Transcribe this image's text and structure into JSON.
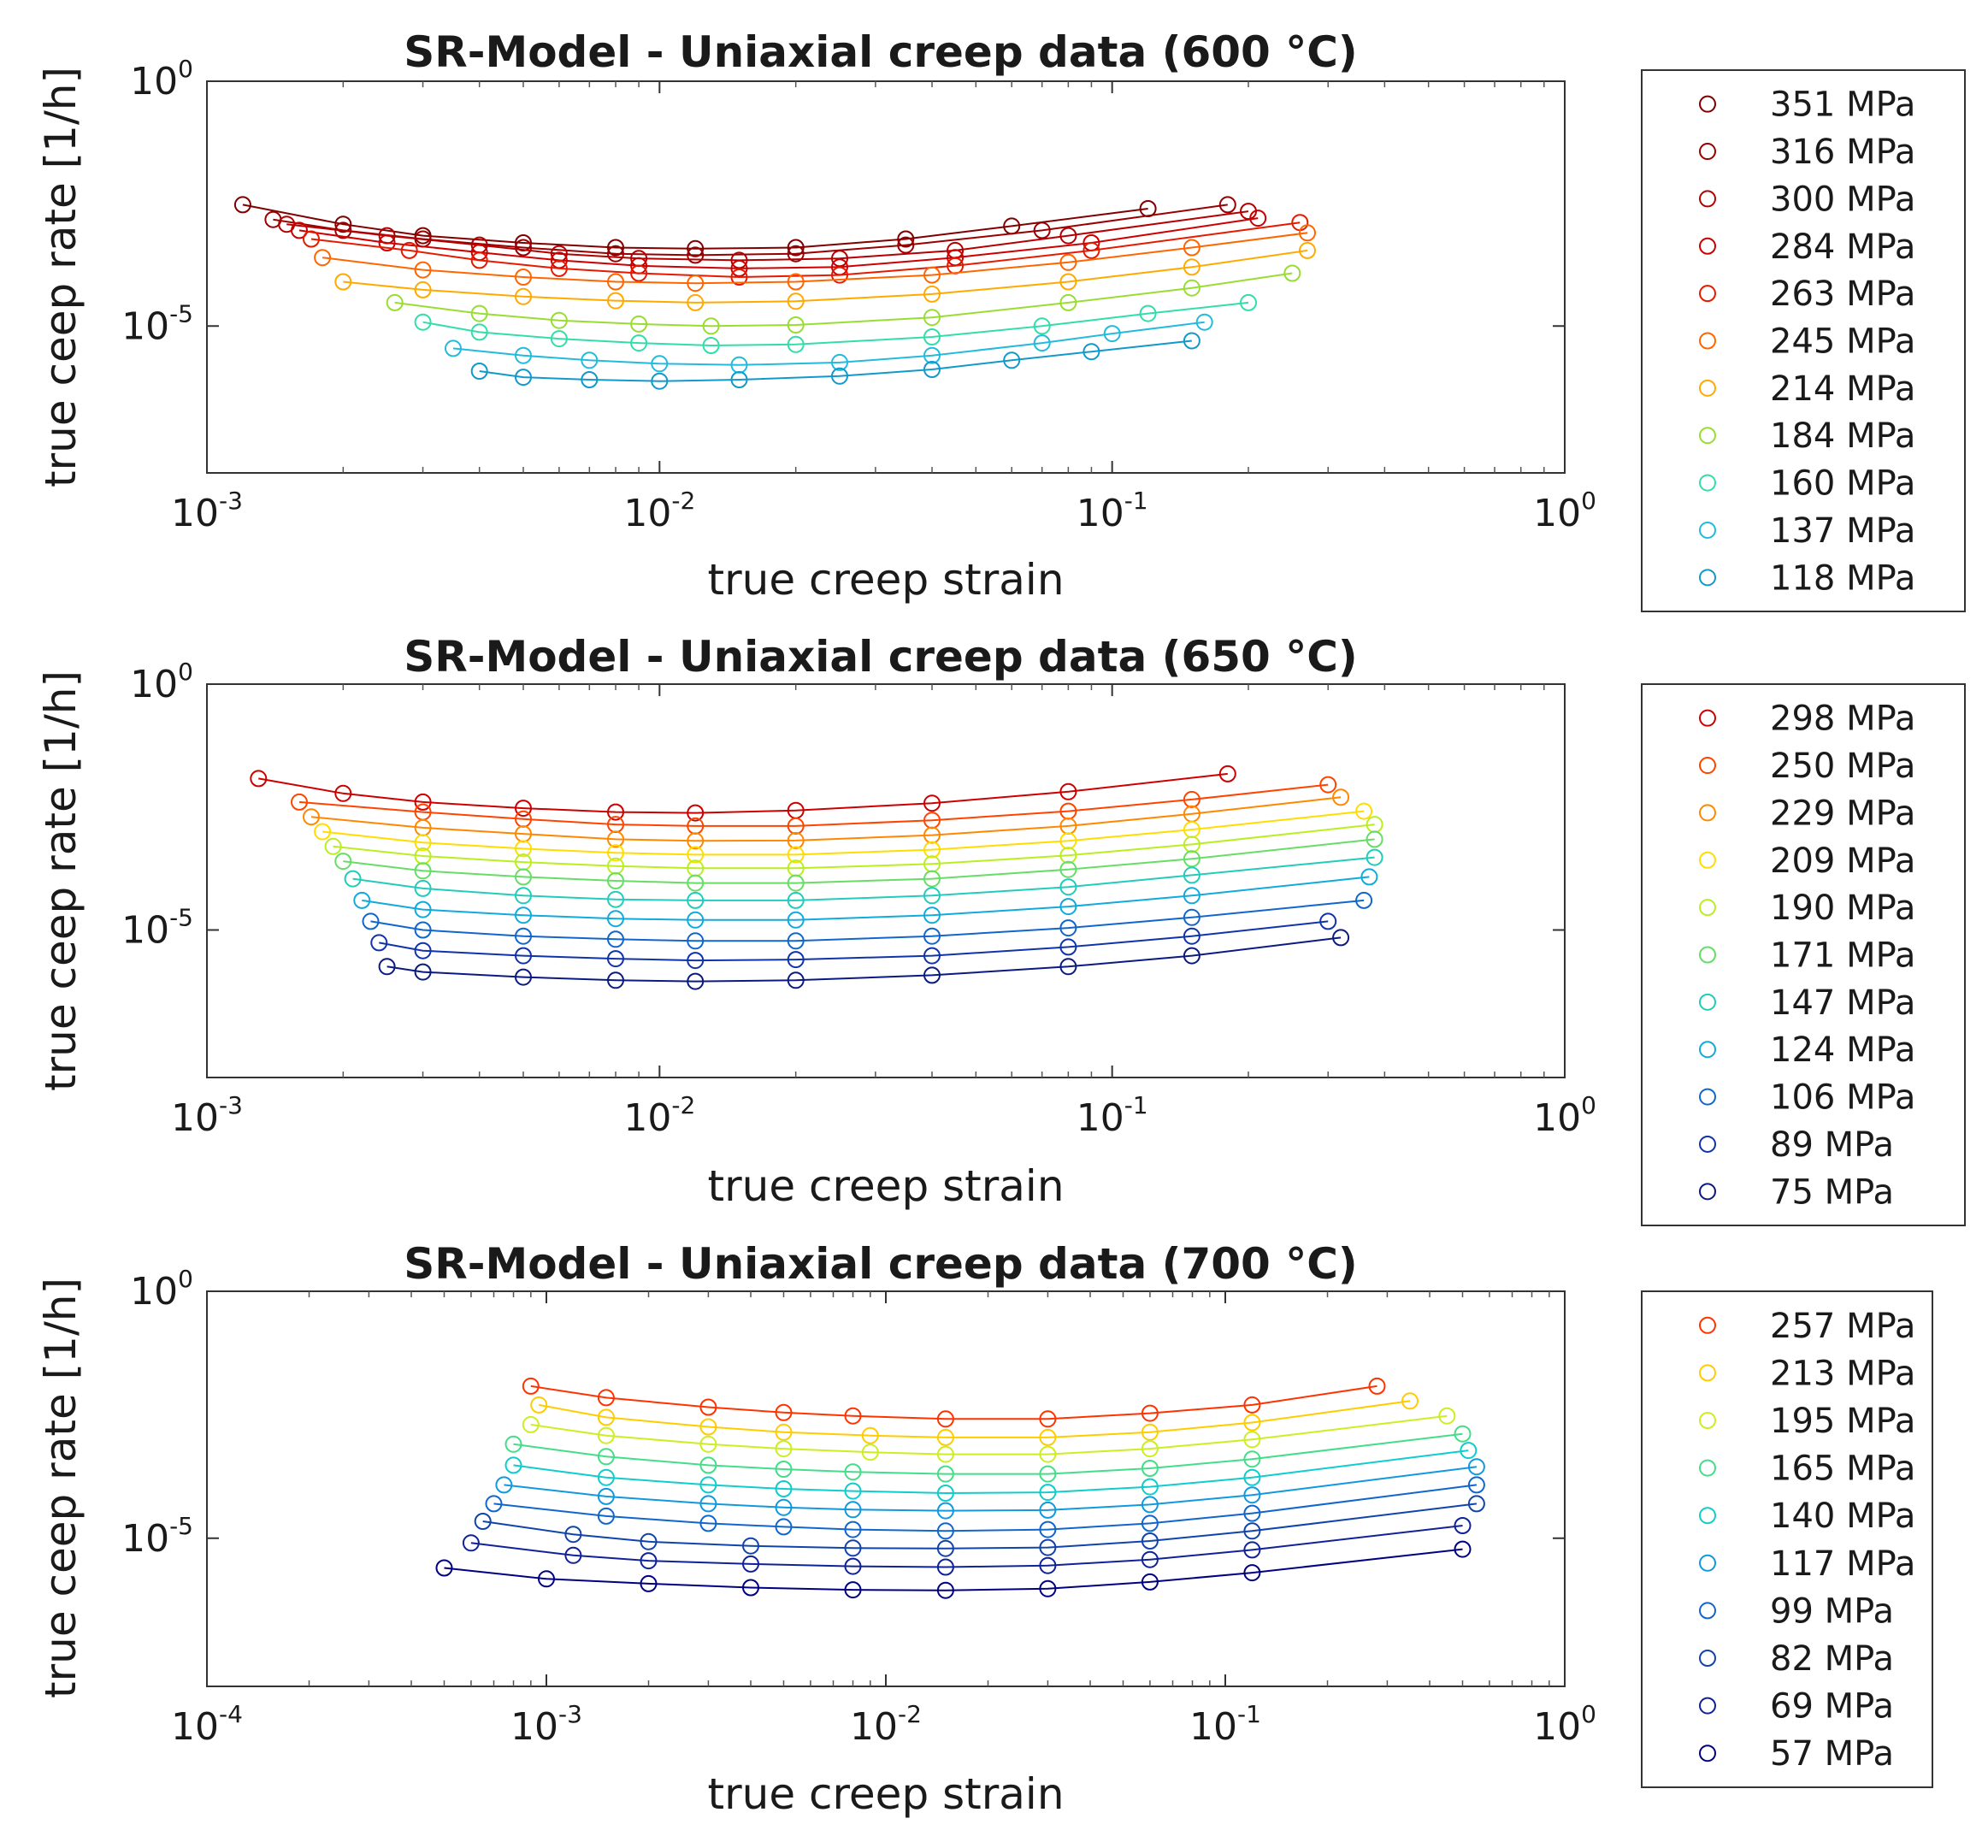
{
  "chart_data": [
    {
      "type": "scatter",
      "title": "SR-Model - Uniaxial creep data (600 °C)",
      "xlabel": "true creep strain",
      "ylabel": "true ceep rate [1/h]",
      "xscale": "log",
      "yscale": "log",
      "xlim_exp": [
        -3,
        0
      ],
      "ylim_exp": [
        -8,
        0
      ],
      "xticks": [
        "10^-3",
        "10^-2",
        "10^-1",
        "10^0"
      ],
      "yticks": [
        "10^0",
        "10^-5"
      ],
      "legend_position": "right",
      "marker": "open circle with fitted line",
      "series": [
        {
          "name": "351 MPa",
          "color": "#800000",
          "x": [
            0.0012,
            0.002,
            0.003,
            0.005,
            0.008,
            0.012,
            0.02,
            0.035,
            0.06,
            0.12
          ],
          "y": [
            0.003,
            0.0012,
            0.0007,
            0.0005,
            0.0004,
            0.00038,
            0.0004,
            0.0006,
            0.0011,
            0.0025
          ]
        },
        {
          "name": "316 MPa",
          "color": "#990000",
          "x": [
            0.0014,
            0.002,
            0.003,
            0.005,
            0.008,
            0.012,
            0.02,
            0.035,
            0.07,
            0.18
          ],
          "y": [
            0.0015,
            0.0009,
            0.0006,
            0.0004,
            0.0003,
            0.00028,
            0.0003,
            0.00045,
            0.0009,
            0.003
          ]
        },
        {
          "name": "300 MPa",
          "color": "#b30000",
          "x": [
            0.0015,
            0.0025,
            0.004,
            0.006,
            0.009,
            0.015,
            0.025,
            0.045,
            0.08,
            0.2
          ],
          "y": [
            0.0012,
            0.0007,
            0.00045,
            0.0003,
            0.00024,
            0.00022,
            0.00024,
            0.00035,
            0.0007,
            0.0022
          ]
        },
        {
          "name": "284 MPa",
          "color": "#cc0000",
          "x": [
            0.0016,
            0.0025,
            0.004,
            0.006,
            0.009,
            0.015,
            0.025,
            0.045,
            0.09,
            0.21
          ],
          "y": [
            0.0009,
            0.0005,
            0.00032,
            0.00022,
            0.00017,
            0.00015,
            0.00016,
            0.00025,
            0.0005,
            0.0016
          ]
        },
        {
          "name": "263 MPa",
          "color": "#e61a00",
          "x": [
            0.0017,
            0.0028,
            0.004,
            0.006,
            0.009,
            0.015,
            0.025,
            0.045,
            0.09,
            0.26
          ],
          "y": [
            0.0006,
            0.00035,
            0.00022,
            0.00015,
            0.00012,
            0.0001,
            0.00011,
            0.00017,
            0.00035,
            0.0013
          ]
        },
        {
          "name": "245 MPa",
          "color": "#ff6600",
          "x": [
            0.0018,
            0.003,
            0.005,
            0.008,
            0.012,
            0.02,
            0.04,
            0.08,
            0.15,
            0.27
          ],
          "y": [
            0.00025,
            0.00014,
            0.0001,
            8e-05,
            7.5e-05,
            8e-05,
            0.00011,
            0.0002,
            0.0004,
            0.0008
          ]
        },
        {
          "name": "214 MPa",
          "color": "#ffaa00",
          "x": [
            0.002,
            0.003,
            0.005,
            0.008,
            0.012,
            0.02,
            0.04,
            0.08,
            0.15,
            0.27
          ],
          "y": [
            8e-05,
            5.5e-05,
            4e-05,
            3.3e-05,
            3e-05,
            3.2e-05,
            4.5e-05,
            8e-05,
            0.00016,
            0.00035
          ]
        },
        {
          "name": "184 MPa",
          "color": "#99dd33",
          "x": [
            0.0026,
            0.004,
            0.006,
            0.009,
            0.013,
            0.02,
            0.04,
            0.08,
            0.15,
            0.25
          ],
          "y": [
            3e-05,
            1.8e-05,
            1.3e-05,
            1.1e-05,
            1e-05,
            1.05e-05,
            1.5e-05,
            3e-05,
            6e-05,
            0.00012
          ]
        },
        {
          "name": "160 MPa",
          "color": "#33ddaa",
          "x": [
            0.003,
            0.004,
            0.006,
            0.009,
            0.013,
            0.02,
            0.04,
            0.07,
            0.12,
            0.2
          ],
          "y": [
            1.2e-05,
            7.5e-06,
            5.5e-06,
            4.5e-06,
            4e-06,
            4.2e-06,
            6e-06,
            1e-05,
            1.8e-05,
            3e-05
          ]
        },
        {
          "name": "137 MPa",
          "color": "#22bbdd",
          "x": [
            0.0035,
            0.005,
            0.007,
            0.01,
            0.015,
            0.025,
            0.04,
            0.07,
            0.1,
            0.16
          ],
          "y": [
            3.5e-06,
            2.5e-06,
            2e-06,
            1.7e-06,
            1.6e-06,
            1.8e-06,
            2.5e-06,
            4.5e-06,
            7e-06,
            1.2e-05
          ]
        },
        {
          "name": "118 MPa",
          "color": "#1199cc",
          "x": [
            0.004,
            0.005,
            0.007,
            0.01,
            0.015,
            0.025,
            0.04,
            0.06,
            0.09,
            0.15
          ],
          "y": [
            1.2e-06,
            9e-07,
            8e-07,
            7.5e-07,
            8e-07,
            9.5e-07,
            1.3e-06,
            2e-06,
            3e-06,
            5e-06
          ]
        }
      ]
    },
    {
      "type": "scatter",
      "title": "SR-Model - Uniaxial creep data (650 °C)",
      "xlabel": "true creep strain",
      "ylabel": "true ceep rate [1/h]",
      "xscale": "log",
      "yscale": "log",
      "xlim_exp": [
        -3,
        0
      ],
      "ylim_exp": [
        -8,
        0
      ],
      "xticks": [
        "10^-3",
        "10^-2",
        "10^-1",
        "10^0"
      ],
      "yticks": [
        "10^0",
        "10^-5"
      ],
      "legend_position": "right",
      "marker": "open circle with fitted line",
      "series": [
        {
          "name": "298 MPa",
          "color": "#cc0000",
          "x": [
            0.0013,
            0.002,
            0.003,
            0.005,
            0.008,
            0.012,
            0.02,
            0.04,
            0.08,
            0.18
          ],
          "y": [
            0.012,
            0.006,
            0.004,
            0.003,
            0.0025,
            0.0024,
            0.0027,
            0.0038,
            0.0065,
            0.015
          ]
        },
        {
          "name": "250 MPa",
          "color": "#ff4400",
          "x": [
            0.0016,
            0.003,
            0.005,
            0.008,
            0.012,
            0.02,
            0.04,
            0.08,
            0.15,
            0.3
          ],
          "y": [
            0.004,
            0.0025,
            0.0018,
            0.0014,
            0.0013,
            0.0013,
            0.0017,
            0.0026,
            0.0045,
            0.009
          ]
        },
        {
          "name": "229 MPa",
          "color": "#ff8800",
          "x": [
            0.0017,
            0.003,
            0.005,
            0.008,
            0.012,
            0.02,
            0.04,
            0.08,
            0.15,
            0.32
          ],
          "y": [
            0.002,
            0.0012,
            0.0009,
            0.0007,
            0.00065,
            0.00066,
            0.00085,
            0.0013,
            0.0023,
            0.005
          ]
        },
        {
          "name": "209 MPa",
          "color": "#ffdd00",
          "x": [
            0.0018,
            0.003,
            0.005,
            0.008,
            0.012,
            0.02,
            0.04,
            0.08,
            0.15,
            0.36
          ],
          "y": [
            0.001,
            0.0006,
            0.00045,
            0.00037,
            0.00034,
            0.00034,
            0.00043,
            0.00065,
            0.0011,
            0.0026
          ]
        },
        {
          "name": "190 MPa",
          "color": "#bbee22",
          "x": [
            0.0019,
            0.003,
            0.005,
            0.008,
            0.012,
            0.02,
            0.04,
            0.08,
            0.15,
            0.38
          ],
          "y": [
            0.0005,
            0.00032,
            0.00024,
            0.0002,
            0.00018,
            0.00018,
            0.00022,
            0.00033,
            0.00055,
            0.0014
          ]
        },
        {
          "name": "171 MPa",
          "color": "#66dd66",
          "x": [
            0.002,
            0.003,
            0.005,
            0.008,
            0.012,
            0.02,
            0.04,
            0.08,
            0.15,
            0.38
          ],
          "y": [
            0.00025,
            0.00016,
            0.00012,
            0.0001,
            9e-05,
            9e-05,
            0.00011,
            0.00017,
            0.00028,
            0.0007
          ]
        },
        {
          "name": "147 MPa",
          "color": "#22ccbb",
          "x": [
            0.0021,
            0.003,
            0.005,
            0.008,
            0.012,
            0.02,
            0.04,
            0.08,
            0.15,
            0.38
          ],
          "y": [
            0.00011,
            7e-05,
            5e-05,
            4.2e-05,
            4e-05,
            4e-05,
            5e-05,
            7.5e-05,
            0.00013,
            0.0003
          ]
        },
        {
          "name": "124 MPa",
          "color": "#11aadd",
          "x": [
            0.0022,
            0.003,
            0.005,
            0.008,
            0.012,
            0.02,
            0.04,
            0.08,
            0.15,
            0.37
          ],
          "y": [
            4e-05,
            2.6e-05,
            2e-05,
            1.7e-05,
            1.6e-05,
            1.6e-05,
            2e-05,
            3e-05,
            5e-05,
            0.00012
          ]
        },
        {
          "name": "106 MPa",
          "color": "#1166cc",
          "x": [
            0.0023,
            0.003,
            0.005,
            0.008,
            0.012,
            0.02,
            0.04,
            0.08,
            0.15,
            0.36
          ],
          "y": [
            1.5e-05,
            1e-05,
            7.5e-06,
            6.5e-06,
            6e-06,
            6e-06,
            7.5e-06,
            1.1e-05,
            1.8e-05,
            4e-05
          ]
        },
        {
          "name": "89 MPa",
          "color": "#1133aa",
          "x": [
            0.0024,
            0.003,
            0.005,
            0.008,
            0.012,
            0.02,
            0.04,
            0.08,
            0.15,
            0.3
          ],
          "y": [
            5.5e-06,
            3.8e-06,
            3e-06,
            2.6e-06,
            2.4e-06,
            2.5e-06,
            3e-06,
            4.5e-06,
            7.5e-06,
            1.5e-05
          ]
        },
        {
          "name": "75 MPa",
          "color": "#0a1a80",
          "x": [
            0.0025,
            0.003,
            0.005,
            0.008,
            0.012,
            0.02,
            0.04,
            0.08,
            0.15,
            0.32
          ],
          "y": [
            1.8e-06,
            1.4e-06,
            1.1e-06,
            9.5e-07,
            9e-07,
            9.5e-07,
            1.2e-06,
            1.8e-06,
            3e-06,
            7e-06
          ]
        }
      ]
    },
    {
      "type": "scatter",
      "title": "SR-Model - Uniaxial creep data (700 °C)",
      "xlabel": "true creep strain",
      "ylabel": "true ceep rate [1/h]",
      "xscale": "log",
      "yscale": "log",
      "xlim_exp": [
        -4,
        0
      ],
      "ylim_exp": [
        -8,
        0
      ],
      "xticks": [
        "10^-4",
        "10^-3",
        "10^-2",
        "10^-1",
        "10^0"
      ],
      "yticks": [
        "10^0",
        "10^-5"
      ],
      "legend_position": "right",
      "marker": "open circle with fitted line",
      "series": [
        {
          "name": "257 MPa",
          "color": "#ff3300",
          "x": [
            0.0009,
            0.0015,
            0.003,
            0.005,
            0.008,
            0.015,
            0.03,
            0.06,
            0.12,
            0.28
          ],
          "y": [
            0.012,
            0.007,
            0.0045,
            0.0035,
            0.003,
            0.0026,
            0.0026,
            0.0034,
            0.005,
            0.012
          ]
        },
        {
          "name": "213 MPa",
          "color": "#ffcc00",
          "x": [
            0.00095,
            0.0015,
            0.003,
            0.005,
            0.009,
            0.015,
            0.03,
            0.06,
            0.12,
            0.35
          ],
          "y": [
            0.005,
            0.0028,
            0.0018,
            0.0014,
            0.0012,
            0.0011,
            0.0011,
            0.0014,
            0.0022,
            0.006
          ]
        },
        {
          "name": "195 MPa",
          "color": "#ccee22",
          "x": [
            0.0009,
            0.0015,
            0.003,
            0.005,
            0.009,
            0.015,
            0.03,
            0.06,
            0.12,
            0.45
          ],
          "y": [
            0.002,
            0.0012,
            0.0008,
            0.00065,
            0.00055,
            0.0005,
            0.0005,
            0.00065,
            0.001,
            0.003
          ]
        },
        {
          "name": "165 MPa",
          "color": "#44dd88",
          "x": [
            0.0008,
            0.0015,
            0.003,
            0.005,
            0.008,
            0.015,
            0.03,
            0.06,
            0.12,
            0.5
          ],
          "y": [
            0.0008,
            0.00045,
            0.0003,
            0.00025,
            0.00022,
            0.0002,
            0.0002,
            0.00026,
            0.0004,
            0.0013
          ]
        },
        {
          "name": "140 MPa",
          "color": "#11cccc",
          "x": [
            0.0008,
            0.0015,
            0.003,
            0.005,
            0.008,
            0.015,
            0.03,
            0.06,
            0.12,
            0.52
          ],
          "y": [
            0.0003,
            0.00017,
            0.00012,
            0.0001,
            9e-05,
            8.2e-05,
            8.5e-05,
            0.00011,
            0.00017,
            0.0006
          ]
        },
        {
          "name": "117 MPa",
          "color": "#1199dd",
          "x": [
            0.00075,
            0.0015,
            0.003,
            0.005,
            0.008,
            0.015,
            0.03,
            0.06,
            0.12,
            0.55
          ],
          "y": [
            0.00012,
            7e-05,
            5e-05,
            4.2e-05,
            3.8e-05,
            3.6e-05,
            3.7e-05,
            4.8e-05,
            7.5e-05,
            0.00028
          ]
        },
        {
          "name": "99 MPa",
          "color": "#1166cc",
          "x": [
            0.0007,
            0.0015,
            0.003,
            0.005,
            0.008,
            0.015,
            0.03,
            0.06,
            0.12,
            0.55
          ],
          "y": [
            5e-05,
            2.8e-05,
            2e-05,
            1.7e-05,
            1.5e-05,
            1.4e-05,
            1.5e-05,
            2e-05,
            3.2e-05,
            0.00012
          ]
        },
        {
          "name": "82 MPa",
          "color": "#1144aa",
          "x": [
            0.00065,
            0.0012,
            0.002,
            0.004,
            0.008,
            0.015,
            0.03,
            0.06,
            0.12,
            0.55
          ],
          "y": [
            2.2e-05,
            1.2e-05,
            8.5e-06,
            7e-06,
            6.3e-06,
            6.2e-06,
            6.5e-06,
            8.8e-06,
            1.4e-05,
            5e-05
          ]
        },
        {
          "name": "69 MPa",
          "color": "#112299",
          "x": [
            0.0006,
            0.0012,
            0.002,
            0.004,
            0.008,
            0.015,
            0.03,
            0.06,
            0.12,
            0.5
          ],
          "y": [
            8e-06,
            4.5e-06,
            3.5e-06,
            3e-06,
            2.7e-06,
            2.6e-06,
            2.8e-06,
            3.7e-06,
            5.8e-06,
            1.8e-05
          ]
        },
        {
          "name": "57 MPa",
          "color": "#000080",
          "x": [
            0.0005,
            0.001,
            0.002,
            0.004,
            0.008,
            0.015,
            0.03,
            0.06,
            0.12,
            0.5
          ],
          "y": [
            2.5e-06,
            1.5e-06,
            1.2e-06,
            1e-06,
            9e-07,
            8.8e-07,
            9.5e-07,
            1.3e-06,
            2e-06,
            6e-06
          ]
        }
      ]
    }
  ]
}
